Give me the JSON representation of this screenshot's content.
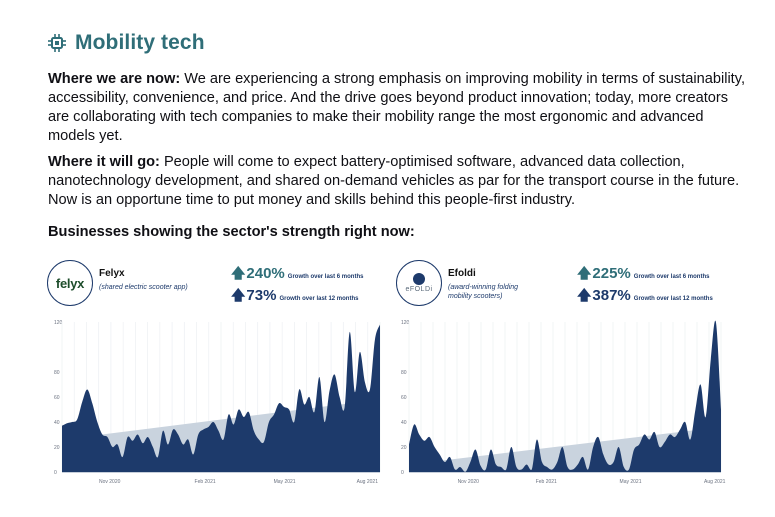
{
  "header": {
    "title": "Mobility tech",
    "icon": "chip-icon",
    "accent": "#2f6e78"
  },
  "paragraphs": [
    {
      "lead": "Where we are now:",
      "body": " We are experiencing a strong emphasis on improving mobility in terms of sustainability, accessibility, convenience, and price. And the drive goes beyond product innovation; today, more creators are collaborating with tech companies to make their mobility range the most ergonomic and advanced models yet."
    },
    {
      "lead": "Where it will go:",
      "body": " People will come to expect battery-optimised software, advanced data collection, nanotechnology development, and shared on-demand vehicles as par for the transport course in the future. Now is an opportune time to put money and skills behind this people-first industry."
    }
  ],
  "subheading": "Businesses showing the sector's strength right now:",
  "companies": [
    {
      "name": "Felyx",
      "logo_text": "felyx",
      "description": "(shared electric scooter app)",
      "stats": [
        {
          "value": "240%",
          "label": "Growth over last 6 months"
        },
        {
          "value": "73%",
          "label": "Growth over last 12 months"
        }
      ]
    },
    {
      "name": "Efoldi",
      "logo_text": "eFOLDi",
      "description_lines": [
        "(award-winning folding",
        "mobility scooters)"
      ],
      "stats": [
        {
          "value": "225%",
          "label": "Growth over last 6 months"
        },
        {
          "value": "387%",
          "label": "Growth over last 12 months"
        }
      ]
    }
  ],
  "colors": {
    "area": "#1d3a6b",
    "trend": "#c9d3de",
    "grid": "#eceff3",
    "stat_teal": "#2f6e78",
    "stat_navy": "#1d3a6b"
  },
  "chart_data": [
    {
      "type": "area",
      "title": "Felyx",
      "ylim": [
        0,
        120
      ],
      "yticks": [
        0,
        20,
        40,
        60,
        80,
        120
      ],
      "x_ticks": [
        {
          "x": 0.15,
          "label": "Nov 2020"
        },
        {
          "x": 0.45,
          "label": "Feb 2021"
        },
        {
          "x": 0.7,
          "label": "May 2021"
        },
        {
          "x": 0.96,
          "label": "Aug 2021"
        }
      ],
      "trend": [
        26,
        58
      ],
      "values": [
        37,
        39,
        40,
        42,
        56,
        66,
        55,
        40,
        30,
        28,
        20,
        22,
        12,
        28,
        25,
        30,
        23,
        28,
        20,
        12,
        33,
        22,
        34,
        30,
        22,
        26,
        14,
        30,
        34,
        36,
        40,
        33,
        26,
        46,
        38,
        50,
        44,
        48,
        33,
        26,
        24,
        40,
        46,
        55,
        52,
        50,
        40,
        66,
        54,
        60,
        48,
        76,
        40,
        65,
        78,
        60,
        52,
        112,
        64,
        96,
        72,
        66,
        106,
        118
      ]
    },
    {
      "type": "area",
      "title": "Efoldi",
      "ylim": [
        0,
        120
      ],
      "yticks": [
        0,
        20,
        40,
        60,
        80,
        120
      ],
      "x_ticks": [
        {
          "x": 0.19,
          "label": "Nov 2020"
        },
        {
          "x": 0.44,
          "label": "Feb 2021"
        },
        {
          "x": 0.71,
          "label": "May 2021"
        },
        {
          "x": 0.98,
          "label": "Aug 2021"
        }
      ],
      "trend": [
        6,
        36
      ],
      "values": [
        22,
        38,
        30,
        25,
        28,
        20,
        14,
        8,
        12,
        2,
        4,
        0,
        8,
        18,
        5,
        2,
        18,
        6,
        4,
        2,
        20,
        4,
        2,
        6,
        2,
        26,
        8,
        4,
        2,
        8,
        20,
        4,
        2,
        6,
        12,
        2,
        20,
        28,
        14,
        6,
        8,
        20,
        4,
        2,
        18,
        22,
        30,
        26,
        32,
        20,
        24,
        30,
        28,
        34,
        40,
        26,
        50,
        70,
        44,
        90,
        120,
        50
      ]
    }
  ]
}
